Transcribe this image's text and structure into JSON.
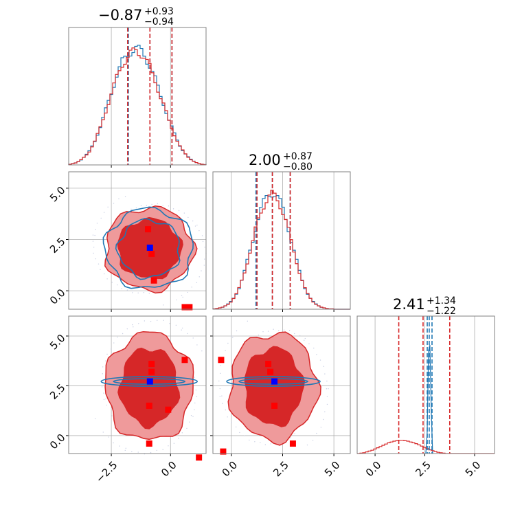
{
  "colors": {
    "red": "#d62728",
    "red_light": "#ef9a9b",
    "red_mid": "#e05a5b",
    "blue": "#1f77b4",
    "truth_blue": "#0000ff",
    "truth_red": "#ff0000",
    "grid": "#b0b0b0",
    "spine": "#808080"
  },
  "titles": [
    {
      "main": "−0.87",
      "plus": "+0.93",
      "minus": "−0.94"
    },
    {
      "main": "2.00",
      "plus": "+0.87",
      "minus": "−0.80"
    },
    {
      "main": "2.41",
      "plus": "+1.34",
      "minus": "−1.22"
    }
  ],
  "chart_data": {
    "type": "corner",
    "parameters": 3,
    "axis_ranges": [
      [
        -4.3,
        1.5
      ],
      [
        -0.9,
        5.8
      ],
      [
        -0.9,
        6.0
      ]
    ],
    "ticks": {
      "p0": [
        -2.5,
        0.0
      ],
      "p1": [
        0.0,
        2.5,
        5.0
      ],
      "p2": [
        0.0,
        2.5,
        5.0
      ],
      "p1_labels": [
        "0.0",
        "2.5",
        "5.0"
      ],
      "p2_labels": [
        "0.0",
        "2.5",
        "5.0"
      ],
      "p0_labels": [
        "−2.5",
        "0.0"
      ]
    },
    "grid": true,
    "series": [
      {
        "color": "blue",
        "quantiles": [
          [
            -1.78,
            -0.87,
            0.06
          ],
          [
            1.2,
            2.0,
            2.87
          ],
          [
            2.62,
            2.72,
            2.86
          ]
        ],
        "center": [
          -0.9,
          2.05,
          2.72
        ],
        "spread": [
          0.9,
          0.85,
          0.08
        ]
      },
      {
        "color": "red",
        "quantiles": [
          [
            -1.81,
            -0.87,
            0.06
          ],
          [
            1.25,
            2.0,
            2.87
          ],
          [
            1.19,
            2.41,
            3.75
          ]
        ],
        "center": [
          -0.9,
          2.05,
          2.41
        ],
        "spread": [
          0.9,
          0.85,
          1.25
        ]
      }
    ],
    "truth_points": {
      "blue_01": [
        -0.87,
        2.1
      ],
      "blue_02": [
        -0.87,
        2.72
      ],
      "blue_12": [
        2.1,
        2.72
      ],
      "red_01": [
        [
          -0.95,
          3.0
        ],
        [
          -0.8,
          1.8
        ],
        [
          -0.7,
          0.5
        ],
        [
          0.6,
          -0.8
        ],
        [
          0.8,
          -0.8
        ]
      ],
      "red_02": [
        [
          -0.8,
          3.6
        ],
        [
          -0.8,
          3.2
        ],
        [
          0.6,
          3.8
        ],
        [
          -0.9,
          1.5
        ],
        [
          -0.1,
          1.3
        ],
        [
          -0.9,
          -0.4
        ],
        [
          1.2,
          -1.1
        ]
      ],
      "red_12": [
        [
          1.8,
          3.6
        ],
        [
          1.9,
          3.2
        ],
        [
          2.1,
          1.5
        ],
        [
          3.0,
          -0.4
        ],
        [
          -0.4,
          -0.8
        ],
        [
          -0.5,
          3.8
        ]
      ]
    },
    "hist_samples": {
      "p0": [
        0.002,
        0.004,
        0.006,
        0.01,
        0.015,
        0.022,
        0.03,
        0.04,
        0.055,
        0.07,
        0.09,
        0.11,
        0.135,
        0.16,
        0.185,
        0.21,
        0.235,
        0.26,
        0.28,
        0.3,
        0.31,
        0.32,
        0.33,
        0.335,
        0.34,
        0.335,
        0.33,
        0.32,
        0.305,
        0.29,
        0.27,
        0.25,
        0.225,
        0.2,
        0.18,
        0.155,
        0.13,
        0.11,
        0.09,
        0.072,
        0.056,
        0.043,
        0.032,
        0.023,
        0.016,
        0.011,
        0.007,
        0.004,
        0.002,
        0.001
      ],
      "p1": [
        0.001,
        0.002,
        0.004,
        0.006,
        0.01,
        0.015,
        0.022,
        0.032,
        0.045,
        0.062,
        0.085,
        0.11,
        0.14,
        0.17,
        0.2,
        0.235,
        0.265,
        0.29,
        0.31,
        0.325,
        0.335,
        0.34,
        0.335,
        0.325,
        0.31,
        0.29,
        0.265,
        0.235,
        0.2,
        0.17,
        0.14,
        0.11,
        0.085,
        0.062,
        0.045,
        0.032,
        0.022,
        0.015,
        0.01,
        0.006,
        0.004,
        0.002,
        0.001,
        0.001,
        0,
        0,
        0,
        0,
        0,
        0
      ],
      "p2_red": [
        0,
        0.001,
        0.002,
        0.004,
        0.006,
        0.008,
        0.011,
        0.014,
        0.017,
        0.02,
        0.023,
        0.026,
        0.028,
        0.03,
        0.031,
        0.032,
        0.032,
        0.031,
        0.03,
        0.028,
        0.026,
        0.024,
        0.021,
        0.018,
        0.015,
        0.012,
        0.009,
        0.007,
        0.005,
        0.003,
        0.002,
        0.001,
        0,
        0,
        0,
        0,
        0,
        0,
        0,
        0,
        0,
        0,
        0,
        0,
        0,
        0,
        0,
        0,
        0,
        0
      ]
    }
  }
}
